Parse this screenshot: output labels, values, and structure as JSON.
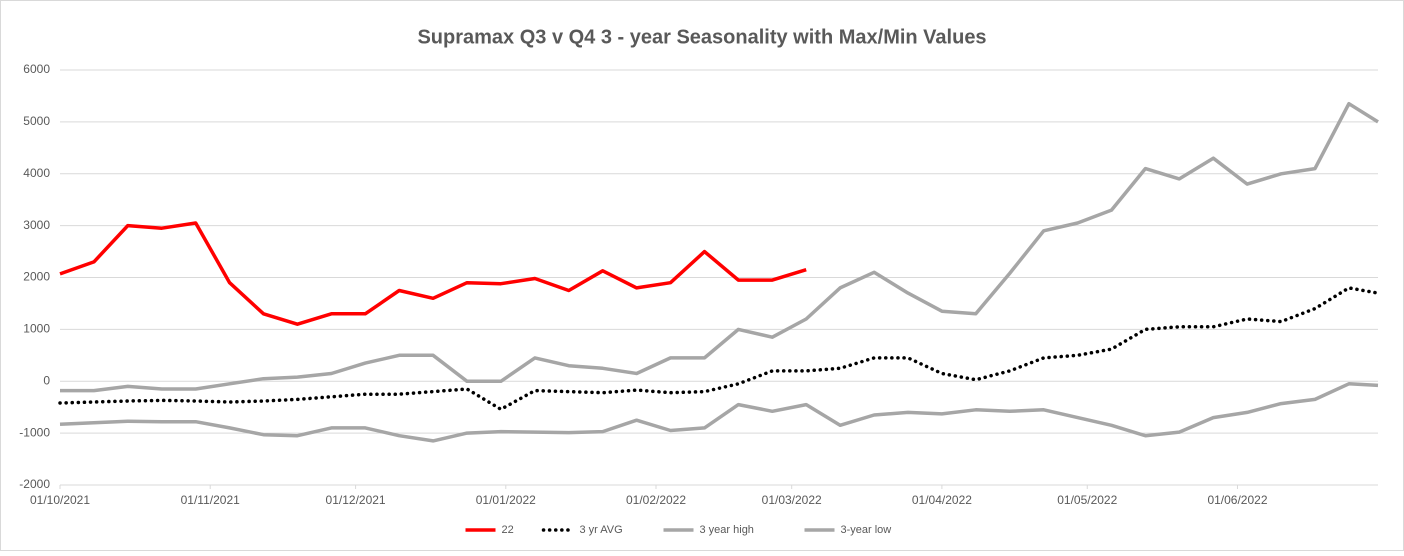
{
  "chart_data": {
    "type": "line",
    "title": "Supramax Q3  v Q4 3 - year Seasonality with Max/Min Values",
    "x": [
      "01/10/2021",
      "08/10/2021",
      "15/10/2021",
      "22/10/2021",
      "29/10/2021",
      "05/11/2021",
      "12/11/2021",
      "19/11/2021",
      "26/11/2021",
      "03/12/2021",
      "10/12/2021",
      "17/12/2021",
      "24/12/2021",
      "31/12/2021",
      "07/01/2022",
      "14/01/2022",
      "21/01/2022",
      "28/01/2022",
      "04/02/2022",
      "11/02/2022",
      "18/02/2022",
      "25/02/2022",
      "04/03/2022",
      "11/03/2022",
      "18/03/2022",
      "25/03/2022",
      "01/04/2022",
      "08/04/2022",
      "15/04/2022",
      "22/04/2022",
      "29/04/2022",
      "06/05/2022",
      "13/05/2022",
      "20/05/2022",
      "27/05/2022",
      "03/06/2022",
      "10/06/2022",
      "17/06/2022",
      "24/06/2022",
      "30/06/2022"
    ],
    "series": [
      {
        "name": "22",
        "color": "#ff0000",
        "style": "solid",
        "values": [
          2070,
          2300,
          3000,
          2950,
          3050,
          1900,
          1300,
          1100,
          1300,
          1300,
          1750,
          1600,
          1900,
          1880,
          1980,
          1750,
          2130,
          1800,
          1900,
          2500,
          1950,
          1950,
          2150,
          null,
          null,
          null,
          null,
          null,
          null,
          null,
          null,
          null,
          null,
          null,
          null,
          null,
          null,
          null,
          null,
          null
        ]
      },
      {
        "name": "3 yr AVG",
        "color": "#000000",
        "style": "dotted",
        "values": [
          -420,
          -400,
          -380,
          -370,
          -380,
          -400,
          -380,
          -350,
          -300,
          -250,
          -250,
          -200,
          -150,
          -540,
          -180,
          -200,
          -220,
          -170,
          -220,
          -200,
          -50,
          200,
          200,
          250,
          450,
          450,
          150,
          30,
          200,
          450,
          500,
          620,
          1000,
          1050,
          1050,
          1200,
          1150,
          1400,
          1800,
          1700
        ]
      },
      {
        "name": "3 year high",
        "color": "#a6a6a6",
        "style": "solid",
        "values": [
          -180,
          -180,
          -100,
          -150,
          -150,
          -50,
          50,
          80,
          150,
          350,
          500,
          500,
          0,
          0,
          450,
          300,
          250,
          150,
          450,
          450,
          1000,
          850,
          1200,
          1800,
          2100,
          1700,
          1350,
          1300,
          2080,
          2900,
          3050,
          3300,
          4100,
          3900,
          4300,
          3800,
          4000,
          4100,
          5350,
          5000
        ]
      },
      {
        "name": "3-year low",
        "color": "#a6a6a6",
        "style": "solid",
        "values": [
          -830,
          -800,
          -770,
          -780,
          -780,
          -900,
          -1030,
          -1050,
          -900,
          -900,
          -1050,
          -1150,
          -1000,
          -970,
          -980,
          -990,
          -970,
          -750,
          -950,
          -900,
          -450,
          -580,
          -450,
          -850,
          -650,
          -600,
          -630,
          -550,
          -580,
          -550,
          -700,
          -850,
          -1050,
          -980,
          -700,
          -600,
          -430,
          -350,
          -50,
          -80
        ]
      }
    ],
    "xlim": [
      "01/10/2021",
      "30/06/2022"
    ],
    "xticks": [
      "01/10/2021",
      "01/11/2021",
      "01/12/2021",
      "01/01/2022",
      "01/02/2022",
      "01/03/2022",
      "01/04/2022",
      "01/05/2022",
      "01/06/2022"
    ],
    "ylim": [
      -2000,
      6000
    ],
    "yticks": [
      -2000,
      -1000,
      0,
      1000,
      2000,
      3000,
      4000,
      5000,
      6000
    ],
    "grid": true,
    "legend": "bottom"
  }
}
